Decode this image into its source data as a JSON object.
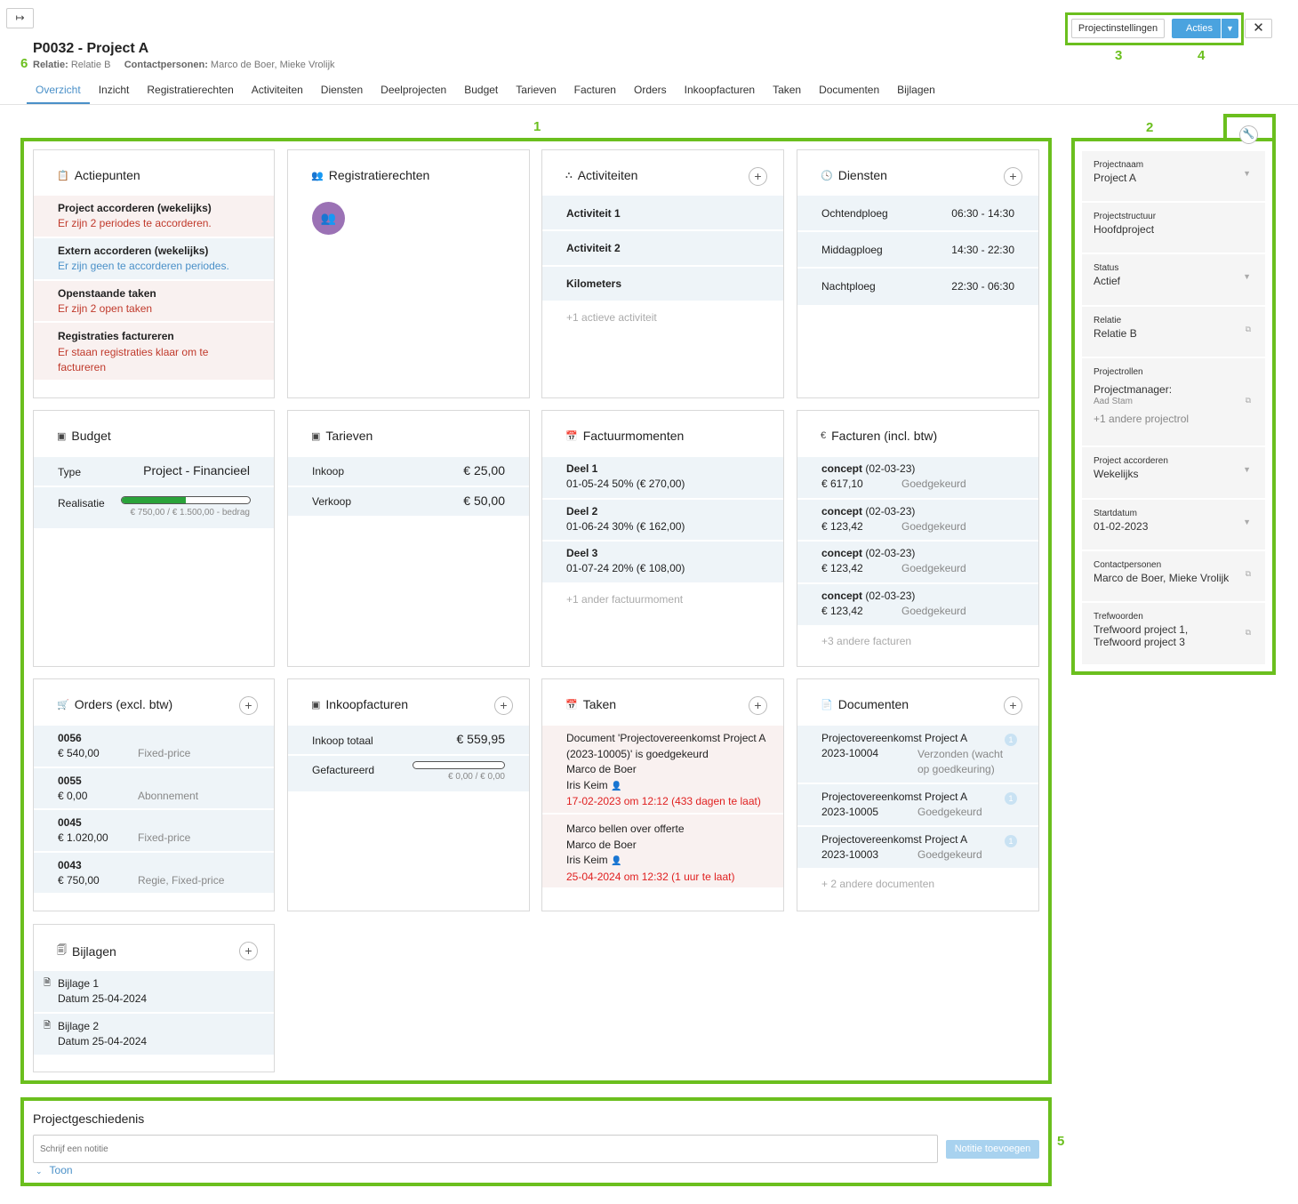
{
  "header": {
    "collapse_icon": "↦",
    "title": "P0032 - Project A",
    "relatie_label": "Relatie:",
    "relatie_value": "Relatie B",
    "contact_label": "Contactpersonen:",
    "contact_value": "Marco de Boer, Mieke Vrolijk",
    "settings_label": "Projectinstellingen",
    "acties_label": "Acties",
    "close_icon": "✕"
  },
  "markers": {
    "m1": "1",
    "m2": "2",
    "m3": "3",
    "m4": "4",
    "m5": "5",
    "m6": "6"
  },
  "tabs": [
    "Overzicht",
    "Inzicht",
    "Registratierechten",
    "Activiteiten",
    "Diensten",
    "Deelprojecten",
    "Budget",
    "Tarieven",
    "Facturen",
    "Orders",
    "Inkoopfacturen",
    "Taken",
    "Documenten",
    "Bijlagen"
  ],
  "actiepunten": {
    "title": "Actiepunten",
    "items": [
      {
        "title": "Project accorderen (wekelijks)",
        "text": "Er zijn 2 periodes te accorderen."
      },
      {
        "title": "Extern accorderen (wekelijks)",
        "text": "Er zijn geen te accorderen periodes."
      },
      {
        "title": "Openstaande taken",
        "text": "Er zijn 2 open taken"
      },
      {
        "title": "Registraties factureren",
        "text": "Er staan registraties klaar om te factureren"
      }
    ]
  },
  "registratierechten": {
    "title": "Registratierechten"
  },
  "activiteiten": {
    "title": "Activiteiten",
    "items": [
      "Activiteit 1",
      "Activiteit 2",
      "Kilometers"
    ],
    "more": "+1 actieve activiteit"
  },
  "diensten": {
    "title": "Diensten",
    "items": [
      {
        "name": "Ochtendploeg",
        "time": "06:30 - 14:30"
      },
      {
        "name": "Middagploeg",
        "time": "14:30 - 22:30"
      },
      {
        "name": "Nachtploeg",
        "time": "22:30 - 06:30"
      }
    ]
  },
  "budget": {
    "title": "Budget",
    "type_label": "Type",
    "type_value": "Project - Financieel",
    "real_label": "Realisatie",
    "real_text": "€ 750,00 / € 1.500,00 - bedrag",
    "progress": 0.5
  },
  "tarieven": {
    "title": "Tarieven",
    "rows": [
      {
        "label": "Inkoop",
        "value": "€ 25,00"
      },
      {
        "label": "Verkoop",
        "value": "€ 50,00"
      }
    ]
  },
  "factuurmomenten": {
    "title": "Factuurmomenten",
    "items": [
      {
        "name": "Deel 1",
        "detail": "01-05-24  50% (€ 270,00)"
      },
      {
        "name": "Deel 2",
        "detail": "01-06-24  30% (€ 162,00)"
      },
      {
        "name": "Deel 3",
        "detail": "01-07-24  20% (€ 108,00)"
      }
    ],
    "more": "+1 ander factuurmoment"
  },
  "facturen": {
    "title": "Facturen (incl. btw)",
    "items": [
      {
        "state": "concept",
        "date": "(02-03-23)",
        "amount": "€ 617,10",
        "status": "Goedgekeurd"
      },
      {
        "state": "concept",
        "date": "(02-03-23)",
        "amount": "€ 123,42",
        "status": "Goedgekeurd"
      },
      {
        "state": "concept",
        "date": "(02-03-23)",
        "amount": "€ 123,42",
        "status": "Goedgekeurd"
      },
      {
        "state": "concept",
        "date": "(02-03-23)",
        "amount": "€ 123,42",
        "status": "Goedgekeurd"
      }
    ],
    "more": "+3 andere facturen"
  },
  "orders": {
    "title": "Orders (excl. btw)",
    "items": [
      {
        "nr": "0056",
        "amount": "€ 540,00",
        "type": "Fixed-price"
      },
      {
        "nr": "0055",
        "amount": "€ 0,00",
        "type": "Abonnement"
      },
      {
        "nr": "0045",
        "amount": "€ 1.020,00",
        "type": "Fixed-price"
      },
      {
        "nr": "0043",
        "amount": "€ 750,00",
        "type": "Regie, Fixed-price"
      }
    ]
  },
  "inkoopfacturen": {
    "title": "Inkoopfacturen",
    "total_label": "Inkoop totaal",
    "total_value": "€ 559,95",
    "gef_label": "Gefactureerd",
    "gef_text": "€ 0,00 / € 0,00",
    "progress": 0
  },
  "taken": {
    "title": "Taken",
    "items": [
      {
        "title": "Document 'Projectovereenkomst Project A (2023-10005)' is goedgekeurd",
        "person": "Marco de Boer",
        "assignee": "Iris Keim",
        "due": "17-02-2023 om 12:12 (433 dagen te laat)"
      },
      {
        "title": "Marco bellen over offerte",
        "person": "Marco de Boer",
        "assignee": "Iris Keim",
        "due": "25-04-2024 om 12:32 (1 uur te laat)"
      }
    ]
  },
  "documenten": {
    "title": "Documenten",
    "items": [
      {
        "name": "Projectovereenkomst Project A",
        "nr": "2023-10004",
        "status": "Verzonden (wacht op goedkeuring)",
        "badge": "1"
      },
      {
        "name": "Projectovereenkomst Project A",
        "nr": "2023-10005",
        "status": "Goedgekeurd",
        "badge": "1"
      },
      {
        "name": "Projectovereenkomst Project A",
        "nr": "2023-10003",
        "status": "Goedgekeurd",
        "badge": "1"
      }
    ],
    "more": "+ 2 andere documenten"
  },
  "bijlagen": {
    "title": "Bijlagen",
    "items": [
      {
        "name": "Bijlage 1",
        "date": "Datum 25-04-2024"
      },
      {
        "name": "Bijlage 2",
        "date": "Datum 25-04-2024"
      }
    ]
  },
  "sidebar": [
    {
      "k": "Projectnaam",
      "v": "Project A",
      "icon": "caret-down-icon"
    },
    {
      "k": "Projectstructuur",
      "v": "Hoofdproject",
      "icon": ""
    },
    {
      "k": "Status",
      "v": "Actief",
      "icon": "caret-down-icon"
    },
    {
      "k": "Relatie",
      "v": "Relatie B",
      "icon": "external-link-icon"
    },
    {
      "k": "Projectrollen",
      "v": "Projectmanager:",
      "v2": "Aad Stam",
      "v3": "+1 andere projectrol",
      "icon": "copy-icon"
    },
    {
      "k": "Project accorderen",
      "v": "Wekelijks",
      "icon": "caret-down-icon"
    },
    {
      "k": "Startdatum",
      "v": "01-02-2023",
      "icon": "caret-down-icon"
    },
    {
      "k": "Contactpersonen",
      "v": "Marco de Boer, Mieke Vrolijk",
      "icon": "copy-icon"
    },
    {
      "k": "Trefwoorden",
      "v": "Trefwoord project 1, Trefwoord project 3",
      "icon": "copy-icon"
    }
  ],
  "history": {
    "title": "Projectgeschiedenis",
    "placeholder": "Schrijf een notitie",
    "button": "Notitie toevoegen",
    "toggle": "Toon"
  },
  "colors": {
    "accent": "#4a90c8",
    "highlight": "#6bbf1e",
    "danger": "#c0392b"
  }
}
